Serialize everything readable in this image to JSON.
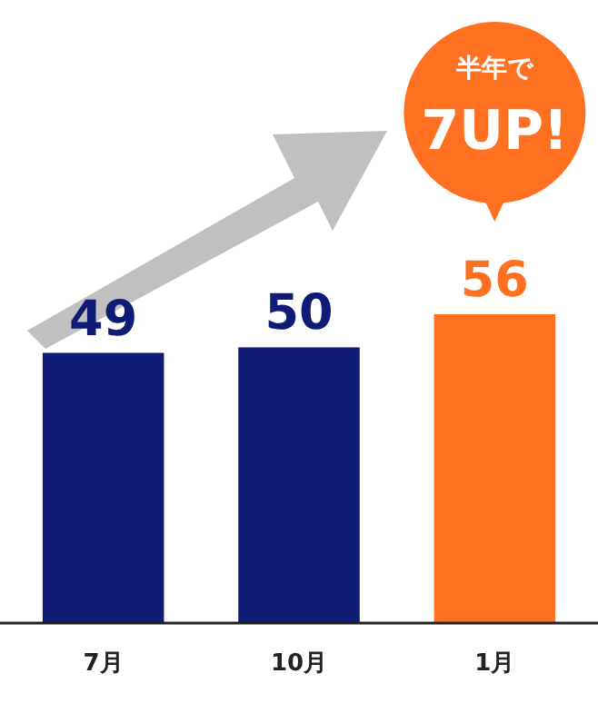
{
  "chart_data": {
    "type": "bar",
    "categories": [
      "7月",
      "10月",
      "1月"
    ],
    "values": [
      49,
      50,
      56
    ],
    "colors": [
      "#0f1b75",
      "#0f1b75",
      "#ff7020"
    ],
    "data_labels": true,
    "annotations": [
      "半年で",
      "7UP!"
    ]
  }
}
